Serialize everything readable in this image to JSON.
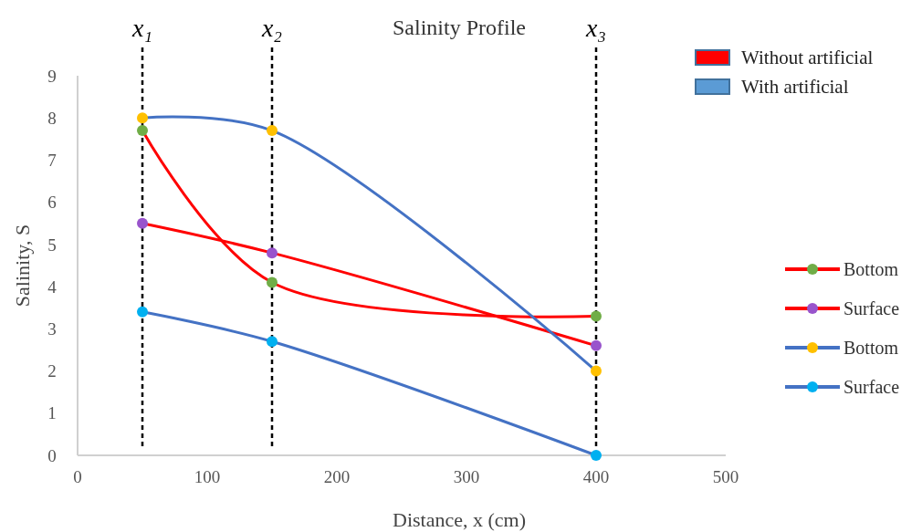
{
  "chart_data": {
    "type": "line",
    "title": "Salinity Profile",
    "xlabel": "Distance, x (cm)",
    "ylabel": "Salinity, S",
    "x": [
      50,
      150,
      400
    ],
    "series": [
      {
        "name": "Bottom",
        "color": "#ff0000",
        "colors": [
          "#70ad47",
          "#70ad47",
          "#70ad47"
        ],
        "values": [
          7.7,
          4.1,
          3.3
        ]
      },
      {
        "name": "Surface",
        "color": "#ff0000",
        "colors": [
          "#9954cc",
          "#9954cc",
          "#9954cc"
        ],
        "values": [
          5.5,
          4.8,
          2.6
        ]
      },
      {
        "name": "Bottom",
        "color": "#4472c4",
        "colors": [
          "#ffc000",
          "#ffc000",
          "#ffc000"
        ],
        "values": [
          8.0,
          7.7,
          2.0
        ]
      },
      {
        "name": "Surface",
        "color": "#4472c4",
        "colors": [
          "#00b0f0",
          "#00b0f0",
          "#00b0f0"
        ],
        "values": [
          3.4,
          2.7,
          0
        ]
      }
    ],
    "annotations": [
      "Without artificial",
      "With artificial"
    ],
    "ref_lines": [
      {
        "axis": "x",
        "value": 50,
        "label": "x₁",
        "line_style": "dashed",
        "color": "#000000"
      },
      {
        "axis": "x",
        "value": 150,
        "label": "x₂",
        "line_style": "dashed",
        "color": "#000000"
      },
      {
        "axis": "x",
        "value": 400,
        "label": "x₃",
        "line_style": "dashed",
        "color": "#000000"
      }
    ],
    "xlim": [
      0,
      500
    ],
    "xticks": [
      0,
      100,
      200,
      300,
      400,
      500
    ],
    "ylim": [
      0,
      9
    ],
    "yticks": [
      0,
      1,
      2,
      3,
      4,
      5,
      6,
      7,
      8,
      9
    ],
    "grid": false,
    "legend": "right",
    "marker": "circle",
    "line_style": "solid"
  }
}
